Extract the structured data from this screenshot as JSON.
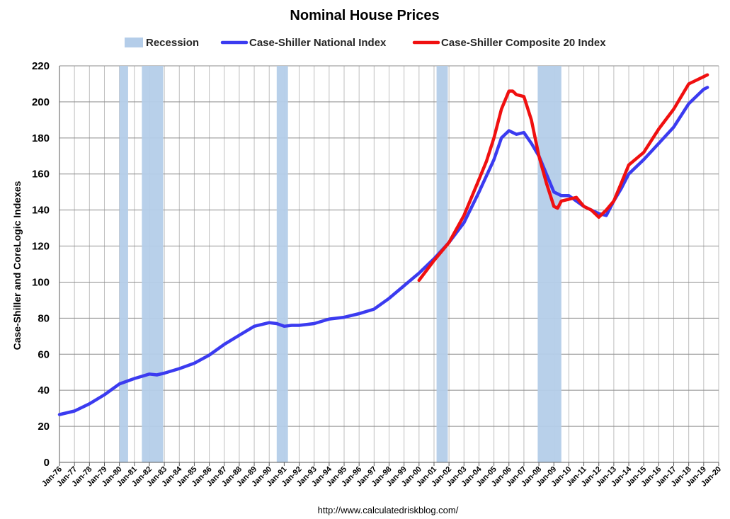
{
  "chart_data": {
    "type": "line",
    "title": "Nominal House Prices",
    "ylabel": "Case-Shiller and CoreLogic Indexes",
    "xlabel": "",
    "source": "http://www.calculatedriskblog.com/",
    "ylim": [
      0,
      220
    ],
    "yticks": [
      0,
      20,
      40,
      60,
      80,
      100,
      120,
      140,
      160,
      180,
      200,
      220
    ],
    "xlim": [
      1976,
      2020
    ],
    "xtick_labels": [
      "Jan-76",
      "Jan-77",
      "Jan-78",
      "Jan-79",
      "Jan-80",
      "Jan-81",
      "Jan-82",
      "Jan-83",
      "Jan-84",
      "Jan-85",
      "Jan-86",
      "Jan-87",
      "Jan-88",
      "Jan-89",
      "Jan-90",
      "Jan-91",
      "Jan-92",
      "Jan-93",
      "Jan-94",
      "Jan-95",
      "Jan-96",
      "Jan-97",
      "Jan-98",
      "Jan-99",
      "Jan-00",
      "Jan-01",
      "Jan-02",
      "Jan-03",
      "Jan-04",
      "Jan-05",
      "Jan-06",
      "Jan-07",
      "Jan-08",
      "Jan-09",
      "Jan-10",
      "Jan-11",
      "Jan-12",
      "Jan-13",
      "Jan-14",
      "Jan-15",
      "Jan-16",
      "Jan-17",
      "Jan-18",
      "Jan-19",
      "Jan-20"
    ],
    "grid": true,
    "legend_position": "top",
    "legend": [
      {
        "label": "Recession",
        "kind": "bar",
        "color": "#b4cde9"
      },
      {
        "label": "Case-Shiller National Index",
        "kind": "line",
        "color": "#3b3bf0"
      },
      {
        "label": "Case-Shiller Composite 20 Index",
        "kind": "line",
        "color": "#f01010"
      }
    ],
    "recessions": [
      {
        "start": 1980.0,
        "end": 1980.58
      },
      {
        "start": 1981.5,
        "end": 1982.92
      },
      {
        "start": 1990.5,
        "end": 1991.25
      },
      {
        "start": 2001.17,
        "end": 2001.92
      },
      {
        "start": 2007.92,
        "end": 2009.5
      }
    ],
    "series": [
      {
        "name": "Case-Shiller National Index",
        "color": "#3b3bf0",
        "x": [
          1976.0,
          1977.0,
          1978.0,
          1979.0,
          1980.0,
          1981.0,
          1982.0,
          1982.5,
          1983.0,
          1984.0,
          1985.0,
          1986.0,
          1987.0,
          1988.0,
          1989.0,
          1990.0,
          1990.5,
          1991.0,
          1991.5,
          1992.0,
          1993.0,
          1994.0,
          1995.0,
          1996.0,
          1997.0,
          1998.0,
          1999.0,
          2000.0,
          2001.0,
          2002.0,
          2003.0,
          2004.0,
          2005.0,
          2005.5,
          2006.0,
          2006.5,
          2007.0,
          2007.5,
          2008.0,
          2008.5,
          2009.0,
          2009.5,
          2010.0,
          2010.5,
          2011.0,
          2011.5,
          2012.0,
          2012.5,
          2013.0,
          2013.5,
          2014.0,
          2015.0,
          2016.0,
          2017.0,
          2018.0,
          2019.0,
          2019.25
        ],
        "values": [
          26.5,
          28.5,
          32.5,
          37.5,
          43.5,
          46.5,
          49,
          48.5,
          49.5,
          52,
          55,
          59.5,
          65.5,
          70.5,
          75.5,
          77.5,
          77,
          75.5,
          76,
          76,
          77,
          79.5,
          80.5,
          82.5,
          85,
          91,
          98,
          105,
          113,
          122,
          133,
          150,
          168,
          180,
          184,
          182,
          183,
          177,
          170,
          160,
          150,
          148,
          148,
          145,
          142,
          140,
          138,
          137,
          145,
          152,
          160,
          168,
          177,
          186,
          199,
          207,
          208
        ]
      },
      {
        "name": "Case-Shiller Composite 20 Index",
        "color": "#f01010",
        "x": [
          2000.0,
          2001.0,
          2002.0,
          2003.0,
          2004.0,
          2004.5,
          2005.0,
          2005.5,
          2006.0,
          2006.25,
          2006.5,
          2007.0,
          2007.5,
          2008.0,
          2008.5,
          2009.0,
          2009.25,
          2009.5,
          2010.0,
          2010.5,
          2011.0,
          2011.5,
          2012.0,
          2012.5,
          2013.0,
          2013.5,
          2014.0,
          2015.0,
          2016.0,
          2017.0,
          2018.0,
          2018.5,
          2019.0,
          2019.25
        ],
        "values": [
          101,
          112,
          122,
          137,
          157,
          167,
          180,
          196,
          206,
          206,
          204,
          203,
          190,
          170,
          155,
          142,
          141,
          145,
          146,
          147,
          142,
          140,
          136,
          140,
          145,
          155,
          165,
          172,
          185,
          196,
          210,
          212,
          214,
          215
        ]
      }
    ]
  }
}
